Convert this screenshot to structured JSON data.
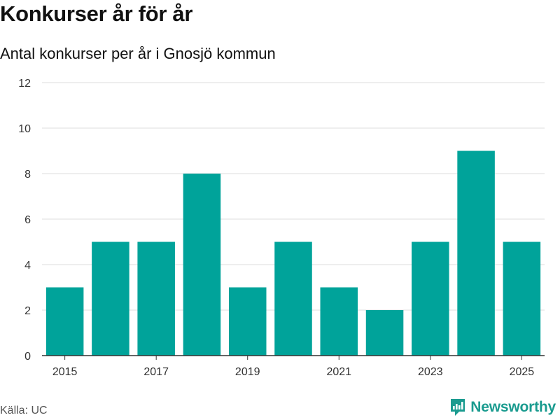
{
  "header": {
    "title": "Konkurser år för år",
    "subtitle": "Antal konkurser per år i Gnosjö kommun"
  },
  "footer": {
    "source": "Källa: UC",
    "brand": "Newsworthy"
  },
  "colors": {
    "bar": "#00a39a",
    "grid": "#dddddd",
    "axis": "#333333",
    "brand": "#1a9b8f"
  },
  "chart_data": {
    "type": "bar",
    "categories": [
      "2015",
      "2016",
      "2017",
      "2018",
      "2019",
      "2020",
      "2021",
      "2022",
      "2023",
      "2024",
      "2025"
    ],
    "values": [
      3,
      5,
      5,
      8,
      3,
      5,
      3,
      2,
      5,
      9,
      5
    ],
    "x_tick_labels": [
      "2015",
      "2017",
      "2019",
      "2021",
      "2023",
      "2025"
    ],
    "y_ticks": [
      0,
      2,
      4,
      6,
      8,
      10,
      12
    ],
    "ylim": [
      0,
      12
    ],
    "title": "Konkurser år för år",
    "subtitle": "Antal konkurser per år i Gnosjö kommun",
    "xlabel": "",
    "ylabel": "",
    "grid": true,
    "legend": "none"
  }
}
